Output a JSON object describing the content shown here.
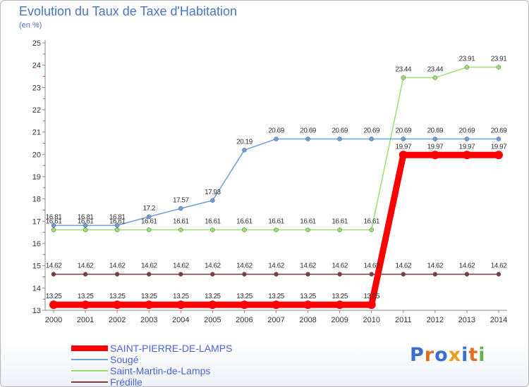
{
  "title": "Evolution du Taux de Taxe d'Habitation",
  "subtitle": "(en %)",
  "logo": "Proxiti",
  "chart_data": {
    "type": "line",
    "title": "Evolution du Taux de Taxe d'Habitation",
    "ylabel": "(en %)",
    "xlabel": "",
    "x": [
      "2000",
      "2001",
      "2002",
      "2003",
      "2004",
      "2005",
      "2006",
      "2007",
      "2008",
      "2009",
      "2010",
      "2011",
      "2012",
      "2013",
      "2014"
    ],
    "ylim": [
      13,
      25
    ],
    "yticks": [
      "13",
      "14",
      "15",
      "16",
      "17",
      "18",
      "19",
      "20",
      "21",
      "22",
      "23",
      "24",
      "25"
    ],
    "grid": false,
    "legend_position": "bottom-left",
    "series": [
      {
        "name": "SAINT-PIERRE-DE-LAMPS",
        "color": "#ff0000",
        "values": [
          13.25,
          13.25,
          13.25,
          13.25,
          13.25,
          13.25,
          13.25,
          13.25,
          13.25,
          13.25,
          13.25,
          19.97,
          19.97,
          19.97,
          19.97
        ],
        "labels": [
          "13.25",
          "13.25",
          "13.25",
          "13.25",
          "13.25",
          "13.25",
          "13.25",
          "13.25",
          "13.25",
          "13.25",
          "13.25",
          "19.97",
          "19.97",
          "19.97",
          "19.97"
        ]
      },
      {
        "name": "Sougé",
        "color": "#6c9fd6",
        "values": [
          16.81,
          16.81,
          16.81,
          17.2,
          17.57,
          17.93,
          20.19,
          20.69,
          20.69,
          20.69,
          20.69,
          20.69,
          20.69,
          20.69,
          20.69
        ],
        "labels": [
          "16.81",
          "16.81",
          "16.81",
          "17.2",
          "17.57",
          "17.93",
          "20.19",
          "20.69",
          "20.69",
          "20.69",
          "20.69",
          "20.69",
          "20.69",
          "20.69",
          "20.69"
        ]
      },
      {
        "name": "Saint-Martin-de-Lamps",
        "color": "#99e070",
        "values": [
          16.61,
          16.61,
          16.61,
          16.61,
          16.61,
          16.61,
          16.61,
          16.61,
          16.61,
          16.61,
          16.61,
          23.44,
          23.44,
          23.91,
          23.91
        ],
        "labels": [
          "16.61",
          "16.61",
          "16.61",
          "16.61",
          "16.61",
          "16.61",
          "16.61",
          "16.61",
          "16.61",
          "16.61",
          "16.61",
          "23.44",
          "23.44",
          "23.91",
          "23.91"
        ]
      },
      {
        "name": "Frédille",
        "color": "#7a4040",
        "values": [
          14.62,
          14.62,
          14.62,
          14.62,
          14.62,
          14.62,
          14.62,
          14.62,
          14.62,
          14.62,
          14.62,
          14.62,
          14.62,
          14.62,
          14.62
        ],
        "labels": [
          "14.62",
          "14.62",
          "14.62",
          "14.62",
          "14.62",
          "14.62",
          "14.62",
          "14.62",
          "14.62",
          "14.62",
          "14.62",
          "14.62",
          "14.62",
          "14.62",
          "14.62"
        ]
      }
    ]
  }
}
